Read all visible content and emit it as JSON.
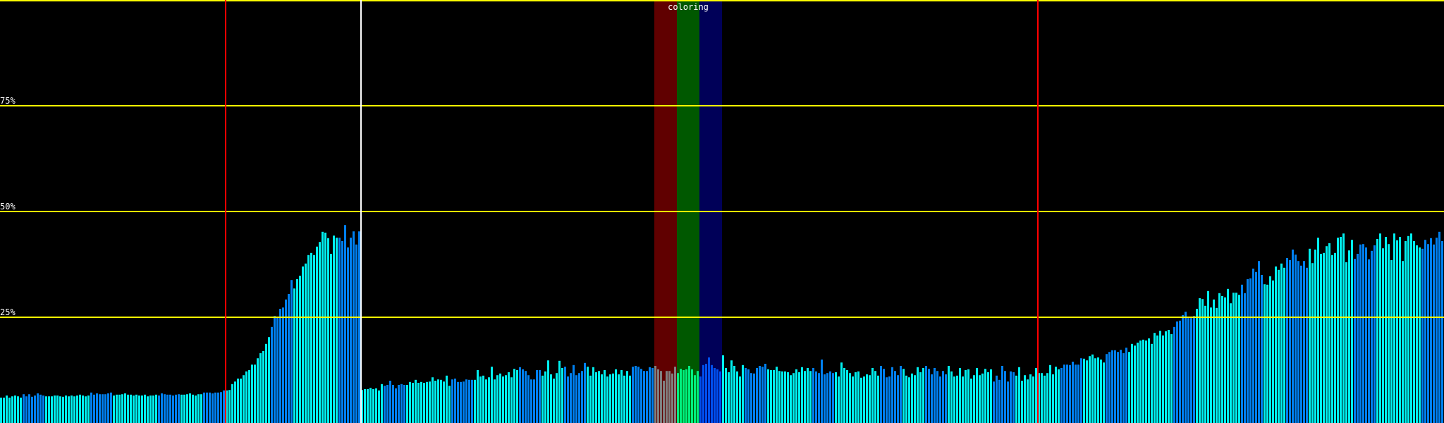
{
  "chart_data": {
    "type": "bar",
    "title": "",
    "xlabel": "",
    "ylabel": "",
    "ylim": [
      0,
      100
    ],
    "grid": {
      "horizontal": true,
      "values": [
        25,
        50,
        75,
        100
      ],
      "color": "#ffff00"
    },
    "y_tick_labels": [
      {
        "value": 75,
        "label": "75%"
      },
      {
        "value": 50,
        "label": "50%"
      },
      {
        "value": 25,
        "label": "25%"
      }
    ],
    "bar_count": 512,
    "values": [
      6.0,
      6.0,
      6.5,
      6.0,
      6.3,
      6.5,
      6.3,
      6.0,
      6.8,
      6.3,
      6.8,
      6.2,
      6.5,
      7.0,
      6.7,
      6.5,
      6.3,
      6.3,
      6.3,
      6.5,
      6.5,
      6.3,
      6.2,
      6.5,
      6.3,
      6.5,
      6.3,
      6.5,
      6.7,
      6.5,
      6.3,
      6.5,
      7.2,
      6.7,
      7.0,
      6.8,
      6.8,
      6.8,
      7.0,
      7.2,
      6.5,
      6.7,
      6.7,
      6.8,
      7.0,
      6.7,
      6.7,
      6.5,
      6.7,
      6.5,
      6.5,
      6.7,
      6.3,
      6.5,
      6.5,
      6.7,
      6.5,
      7.0,
      6.8,
      6.7,
      6.7,
      6.5,
      6.7,
      6.8,
      6.7,
      6.7,
      6.8,
      7.0,
      6.7,
      6.5,
      6.8,
      6.8,
      7.2,
      7.2,
      7.2,
      7.0,
      7.2,
      7.2,
      7.3,
      7.7,
      7.7,
      7.8,
      9.2,
      9.8,
      10.5,
      10.5,
      11.3,
      12.2,
      12.5,
      13.8,
      13.8,
      15.3,
      16.5,
      17.0,
      18.7,
      20.3,
      22.7,
      25.3,
      25.0,
      27.0,
      27.3,
      29.2,
      30.5,
      33.8,
      31.8,
      34.0,
      34.8,
      37.0,
      37.7,
      39.7,
      40.2,
      39.7,
      41.7,
      42.8,
      45.2,
      45.0,
      43.7,
      40.0,
      44.3,
      43.8,
      43.8,
      43.0,
      46.8,
      41.5,
      43.8,
      45.3,
      42.2,
      45.3,
      7.8,
      8.0,
      8.0,
      8.3,
      8.0,
      8.2,
      7.7,
      9.2,
      8.8,
      9.0,
      10.0,
      9.0,
      8.2,
      9.0,
      9.2,
      9.0,
      9.0,
      9.7,
      9.5,
      10.2,
      9.5,
      9.7,
      9.5,
      9.7,
      9.8,
      10.8,
      10.0,
      10.3,
      10.2,
      9.8,
      11.2,
      8.8,
      10.3,
      10.5,
      9.7,
      9.7,
      9.8,
      10.3,
      10.2,
      10.2,
      10.2,
      12.5,
      11.0,
      11.2,
      10.3,
      10.8,
      13.3,
      10.3,
      11.3,
      11.7,
      11.0,
      11.3,
      12.0,
      10.8,
      12.8,
      12.5,
      13.2,
      12.7,
      12.3,
      11.3,
      10.3,
      10.3,
      12.5,
      12.5,
      11.2,
      12.2,
      14.8,
      11.5,
      10.5,
      11.8,
      14.7,
      13.0,
      13.3,
      11.0,
      11.8,
      13.7,
      11.3,
      11.8,
      12.3,
      14.2,
      13.3,
      11.2,
      13.2,
      12.0,
      12.3,
      11.5,
      12.5,
      11.0,
      11.5,
      11.7,
      12.7,
      11.5,
      12.5,
      11.2,
      12.3,
      11.2,
      13.3,
      13.5,
      13.3,
      12.8,
      12.3,
      12.3,
      13.2,
      13.0,
      13.5,
      12.7,
      12.3,
      10.0,
      12.3,
      12.3,
      11.7,
      13.3,
      11.8,
      12.8,
      12.5,
      12.7,
      13.5,
      12.7,
      11.3,
      12.3,
      11.0,
      13.7,
      14.0,
      15.5,
      13.7,
      13.0,
      12.7,
      12.2,
      16.0,
      13.0,
      12.0,
      14.8,
      13.5,
      12.2,
      11.0,
      13.7,
      13.0,
      12.7,
      11.8,
      11.7,
      13.0,
      13.5,
      13.3,
      14.0,
      12.7,
      12.5,
      12.5,
      13.3,
      12.3,
      12.2,
      12.2,
      12.0,
      11.3,
      11.8,
      12.7,
      12.0,
      13.2,
      12.3,
      13.0,
      12.3,
      13.0,
      12.2,
      11.8,
      15.0,
      11.5,
      11.8,
      12.2,
      11.8,
      12.0,
      11.0,
      14.3,
      13.0,
      12.5,
      11.8,
      11.0,
      12.0,
      12.2,
      10.7,
      11.0,
      11.5,
      11.3,
      13.0,
      12.3,
      11.2,
      13.5,
      12.8,
      10.8,
      11.0,
      13.2,
      12.3,
      11.3,
      13.5,
      12.8,
      11.2,
      10.8,
      11.7,
      11.3,
      13.2,
      12.0,
      13.0,
      13.5,
      12.8,
      11.5,
      13.0,
      12.3,
      11.0,
      12.3,
      11.5,
      13.5,
      12.2,
      11.0,
      11.2,
      13.0,
      11.0,
      12.5,
      12.7,
      10.5,
      11.3,
      13.0,
      11.3,
      11.7,
      12.8,
      12.0,
      12.7,
      9.8,
      11.2,
      10.2,
      13.5,
      12.3,
      9.8,
      12.2,
      12.0,
      11.2,
      13.2,
      10.0,
      11.3,
      10.3,
      11.5,
      11.0,
      13.0,
      11.8,
      11.8,
      11.2,
      11.8,
      13.7,
      11.5,
      13.3,
      12.7,
      13.0,
      13.8,
      13.8,
      13.7,
      14.5,
      13.8,
      13.8,
      15.3,
      15.2,
      14.8,
      15.8,
      16.2,
      15.3,
      15.5,
      15.0,
      14.3,
      16.3,
      16.8,
      17.2,
      17.2,
      16.8,
      17.3,
      16.5,
      17.8,
      16.8,
      18.7,
      18.3,
      19.0,
      19.5,
      19.7,
      19.5,
      20.0,
      18.7,
      21.3,
      20.7,
      21.8,
      20.7,
      21.7,
      22.0,
      21.0,
      22.7,
      24.0,
      24.2,
      25.5,
      26.3,
      24.8,
      24.8,
      25.3,
      27.0,
      29.5,
      29.3,
      27.7,
      31.2,
      27.3,
      29.2,
      27.2,
      30.7,
      30.0,
      29.7,
      31.7,
      28.3,
      30.8,
      30.8,
      30.3,
      32.7,
      30.7,
      34.0,
      34.2,
      36.5,
      35.7,
      38.3,
      35.0,
      32.8,
      32.7,
      34.7,
      33.7,
      37.0,
      36.2,
      37.7,
      36.7,
      39.0,
      38.5,
      41.0,
      39.8,
      38.3,
      37.2,
      38.3,
      36.7,
      41.2,
      37.8,
      41.0,
      43.8,
      40.0,
      40.2,
      41.8,
      42.5,
      39.7,
      40.2,
      43.8,
      44.0,
      44.8,
      38.0,
      40.8,
      43.3,
      38.8,
      40.0,
      42.2,
      42.3,
      41.5,
      38.7,
      40.7,
      42.0,
      43.5,
      44.8,
      41.3,
      44.0,
      42.3,
      38.5,
      44.8,
      43.2,
      44.0,
      38.3,
      43.0,
      44.2,
      44.8,
      43.0,
      42.0,
      41.5,
      41.2,
      43.3,
      42.3,
      43.7,
      42.2,
      43.8,
      45.2,
      43.0
    ],
    "bar_colors": {
      "cyan": "#00f0f0",
      "blue": "#0080f0"
    },
    "color_cycle": [
      [
        "cyan",
        8
      ],
      [
        "blue",
        8
      ],
      [
        "cyan",
        16
      ],
      [
        "blue",
        8
      ],
      [
        "cyan",
        16
      ],
      [
        "blue",
        8
      ]
    ],
    "highlight": {
      "label": "coloring",
      "bands": [
        {
          "name": "red",
          "first_bar": 232,
          "count": 8,
          "band_color": "#600000",
          "bar_color": "#808080"
        },
        {
          "name": "green",
          "first_bar": 240,
          "count": 8,
          "band_color": "#005800",
          "bar_color": "#00f080"
        },
        {
          "name": "blue",
          "first_bar": 248,
          "count": 8,
          "band_color": "#000058",
          "bar_color": "#0050f0"
        }
      ]
    },
    "markers": [
      {
        "bar": 80,
        "color": "#ff0000"
      },
      {
        "bar": 128,
        "color": "#ffffff"
      },
      {
        "bar": 368,
        "color": "#ff0000"
      }
    ]
  }
}
